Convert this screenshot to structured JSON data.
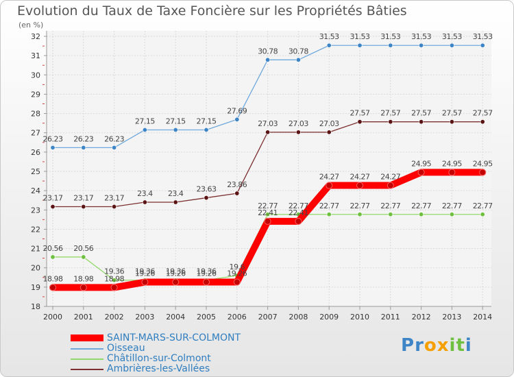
{
  "chart_data": {
    "type": "line",
    "title": "Evolution du Taux de Taxe Foncière sur les Propriétés Bâties",
    "ylabel": "(en %)",
    "xlabel": "",
    "ylim": [
      18,
      32
    ],
    "yticks": [
      18,
      19,
      20,
      21,
      22,
      23,
      24,
      25,
      26,
      27,
      28,
      29,
      30,
      31,
      32
    ],
    "categories": [
      "2000",
      "2001",
      "2002",
      "2003",
      "2004",
      "2005",
      "2006",
      "2007",
      "2008",
      "2009",
      "2010",
      "2011",
      "2012",
      "2013",
      "2014"
    ],
    "series": [
      {
        "name": "SAINT-MARS-SUR-COLMONT",
        "color": "#ff0000",
        "marker_color": "#c40000",
        "values": [
          18.98,
          18.98,
          18.98,
          19.26,
          19.26,
          19.26,
          19.26,
          22.41,
          22.41,
          24.27,
          24.27,
          24.27,
          24.95,
          24.95,
          24.95
        ]
      },
      {
        "name": "Oisseau",
        "color": "#6fa8dc",
        "marker_color": "#3d85c6",
        "values": [
          26.23,
          26.23,
          26.23,
          27.15,
          27.15,
          27.15,
          27.69,
          30.78,
          30.78,
          31.53,
          31.53,
          31.53,
          31.53,
          31.53,
          31.53
        ]
      },
      {
        "name": "Châtillon-sur-Colmont",
        "color": "#93d86a",
        "marker_color": "#6fc040",
        "values": [
          20.56,
          20.56,
          19.36,
          19.36,
          19.36,
          19.36,
          19.6,
          22.77,
          22.77,
          22.77,
          22.77,
          22.77,
          22.77,
          22.77,
          22.77
        ]
      },
      {
        "name": "Ambrières-les-Vallées",
        "color": "#7b2f2f",
        "marker_color": "#5a1414",
        "values": [
          23.17,
          23.17,
          23.17,
          23.4,
          23.4,
          23.63,
          23.86,
          27.03,
          27.03,
          27.03,
          27.57,
          27.57,
          27.57,
          27.57,
          27.57
        ]
      }
    ]
  },
  "logo": {
    "letters": [
      "P",
      "r",
      "o",
      "x",
      "i",
      "t",
      "i"
    ],
    "colors": [
      "#3d85c6",
      "#3d85c6",
      "#f6a000",
      "#f6a000",
      "#6fc040",
      "#6fc040",
      "#3d85c6"
    ]
  }
}
